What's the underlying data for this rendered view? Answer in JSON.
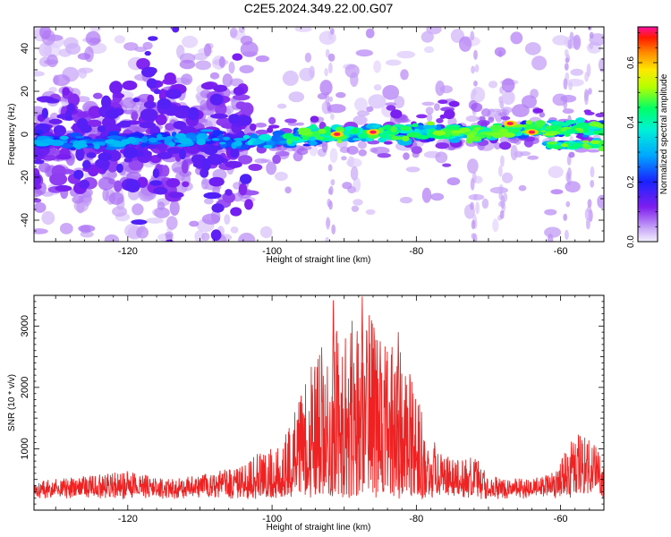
{
  "title": "C2E5.2024.349.22.00.G07",
  "chart_data": [
    {
      "type": "heatmap",
      "xlabel": "Height of straight line (km)",
      "ylabel": "Frequency (Hz)",
      "xlim": [
        -133,
        -54
      ],
      "ylim": [
        -50,
        50
      ],
      "xticks": [
        -120,
        -100,
        -80,
        -60
      ],
      "yticks": [
        -40,
        -20,
        0,
        20,
        40
      ],
      "colorbar": {
        "label": "Normalized spectral amplitude",
        "range": [
          0,
          0.72
        ],
        "ticks": [
          0.0,
          0.2,
          0.4,
          0.6
        ]
      },
      "band": {
        "x": [
          -133,
          -125,
          -118,
          -110,
          -105,
          -100,
          -95,
          -90,
          -85,
          -80,
          -75,
          -70,
          -65,
          -60,
          -54
        ],
        "center_hz": [
          -3,
          -4,
          -3,
          -2,
          -4,
          -3,
          -1,
          0,
          1,
          1,
          1,
          1,
          2,
          2,
          3
        ]
      },
      "secondary_band": {
        "x": [
          -62,
          -54
        ],
        "center_hz": [
          -5,
          -5
        ]
      },
      "max_hotspots": [
        {
          "x": -91,
          "y": 0
        },
        {
          "x": -86,
          "y": 1
        },
        {
          "x": -67,
          "y": 5
        },
        {
          "x": -64,
          "y": 1
        }
      ]
    },
    {
      "type": "line",
      "xlabel": "Height of straight line (km)",
      "ylabel": "SNR (10 * v/v)",
      "xlim": [
        -133,
        -54
      ],
      "ylim": [
        0,
        3500
      ],
      "xticks": [
        -120,
        -100,
        -80,
        -60
      ],
      "yticks": [
        1000,
        2000,
        3000
      ],
      "color": "#ee2222",
      "envelope": {
        "x": [
          -133,
          -125,
          -120,
          -115,
          -110,
          -105,
          -102,
          -100,
          -97,
          -95,
          -93,
          -91,
          -89,
          -87,
          -85,
          -83,
          -81,
          -79,
          -77,
          -75,
          -72,
          -70,
          -67,
          -64,
          -61,
          -58,
          -55,
          -54
        ],
        "y": [
          470,
          560,
          640,
          500,
          560,
          720,
          920,
          1020,
          1600,
          2300,
          2700,
          2950,
          3100,
          3350,
          2800,
          2750,
          2300,
          1500,
          980,
          820,
          900,
          560,
          520,
          500,
          620,
          1300,
          1050,
          830
        ]
      },
      "peaks": [
        {
          "x": -91.5,
          "y": 3420
        },
        {
          "x": -87.5,
          "y": 3480
        },
        {
          "x": -85,
          "y": 2750
        },
        {
          "x": -82.5,
          "y": 2900
        }
      ]
    }
  ]
}
